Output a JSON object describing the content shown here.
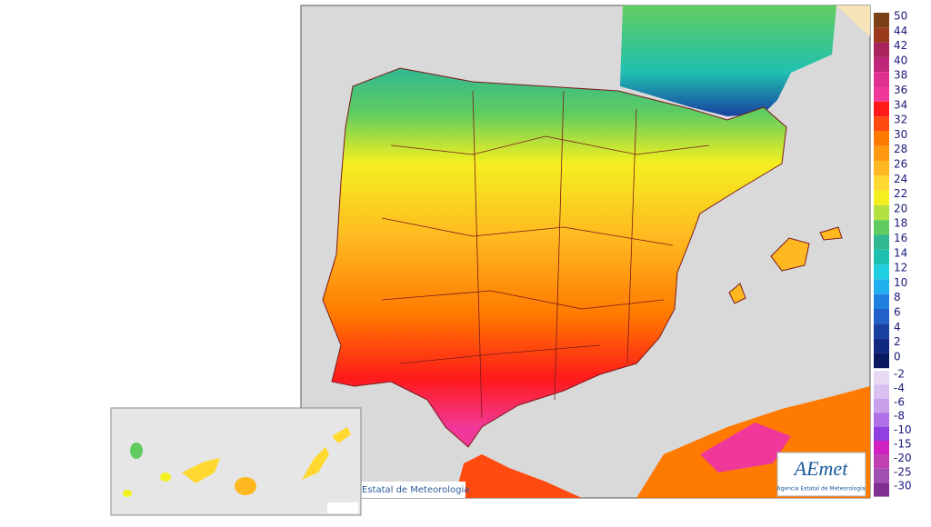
{
  "legend": {
    "upper": [
      {
        "label": 50,
        "color": "#7b3f16"
      },
      {
        "label": 44,
        "color": "#9c3a1c"
      },
      {
        "label": 42,
        "color": "#a8245a"
      },
      {
        "label": 40,
        "color": "#c0267a"
      },
      {
        "label": 38,
        "color": "#e0308f"
      },
      {
        "label": 36,
        "color": "#f0389a"
      },
      {
        "label": 34,
        "color": "#ff1a1a"
      },
      {
        "label": 32,
        "color": "#ff4a10"
      },
      {
        "label": 30,
        "color": "#ff7a00"
      },
      {
        "label": 28,
        "color": "#ff9a10"
      },
      {
        "label": 26,
        "color": "#ffb820"
      },
      {
        "label": 24,
        "color": "#ffd830"
      },
      {
        "label": 22,
        "color": "#f4f020"
      },
      {
        "label": 20,
        "color": "#b4e040"
      },
      {
        "label": 18,
        "color": "#60cc60"
      },
      {
        "label": 16,
        "color": "#30b890"
      },
      {
        "label": 14,
        "color": "#20c0b0"
      },
      {
        "label": 12,
        "color": "#20d0e0"
      },
      {
        "label": 10,
        "color": "#20b0f0"
      },
      {
        "label": 8,
        "color": "#2080e0"
      },
      {
        "label": 6,
        "color": "#2060c8"
      },
      {
        "label": 4,
        "color": "#1840a0"
      },
      {
        "label": 2,
        "color": "#102880"
      },
      {
        "label": 0,
        "color": "#0a1860"
      }
    ],
    "lower": [
      {
        "label": -2,
        "color": "#e8d8f4"
      },
      {
        "label": -4,
        "color": "#d8c0f0"
      },
      {
        "label": -6,
        "color": "#c8a0ec"
      },
      {
        "label": -8,
        "color": "#b070e8"
      },
      {
        "label": -10,
        "color": "#9040e0"
      },
      {
        "label": -15,
        "color": "#d020c0"
      },
      {
        "label": -20,
        "color": "#c040b0"
      },
      {
        "label": -25,
        "color": "#a050b0"
      },
      {
        "label": -30,
        "color": "#803090"
      }
    ]
  },
  "footer": {
    "agency_partial": "Estatal de Meteorologia"
  },
  "logo": {
    "name": "AEmet",
    "subtitle": "Agencia Estatal de Meteorología"
  }
}
